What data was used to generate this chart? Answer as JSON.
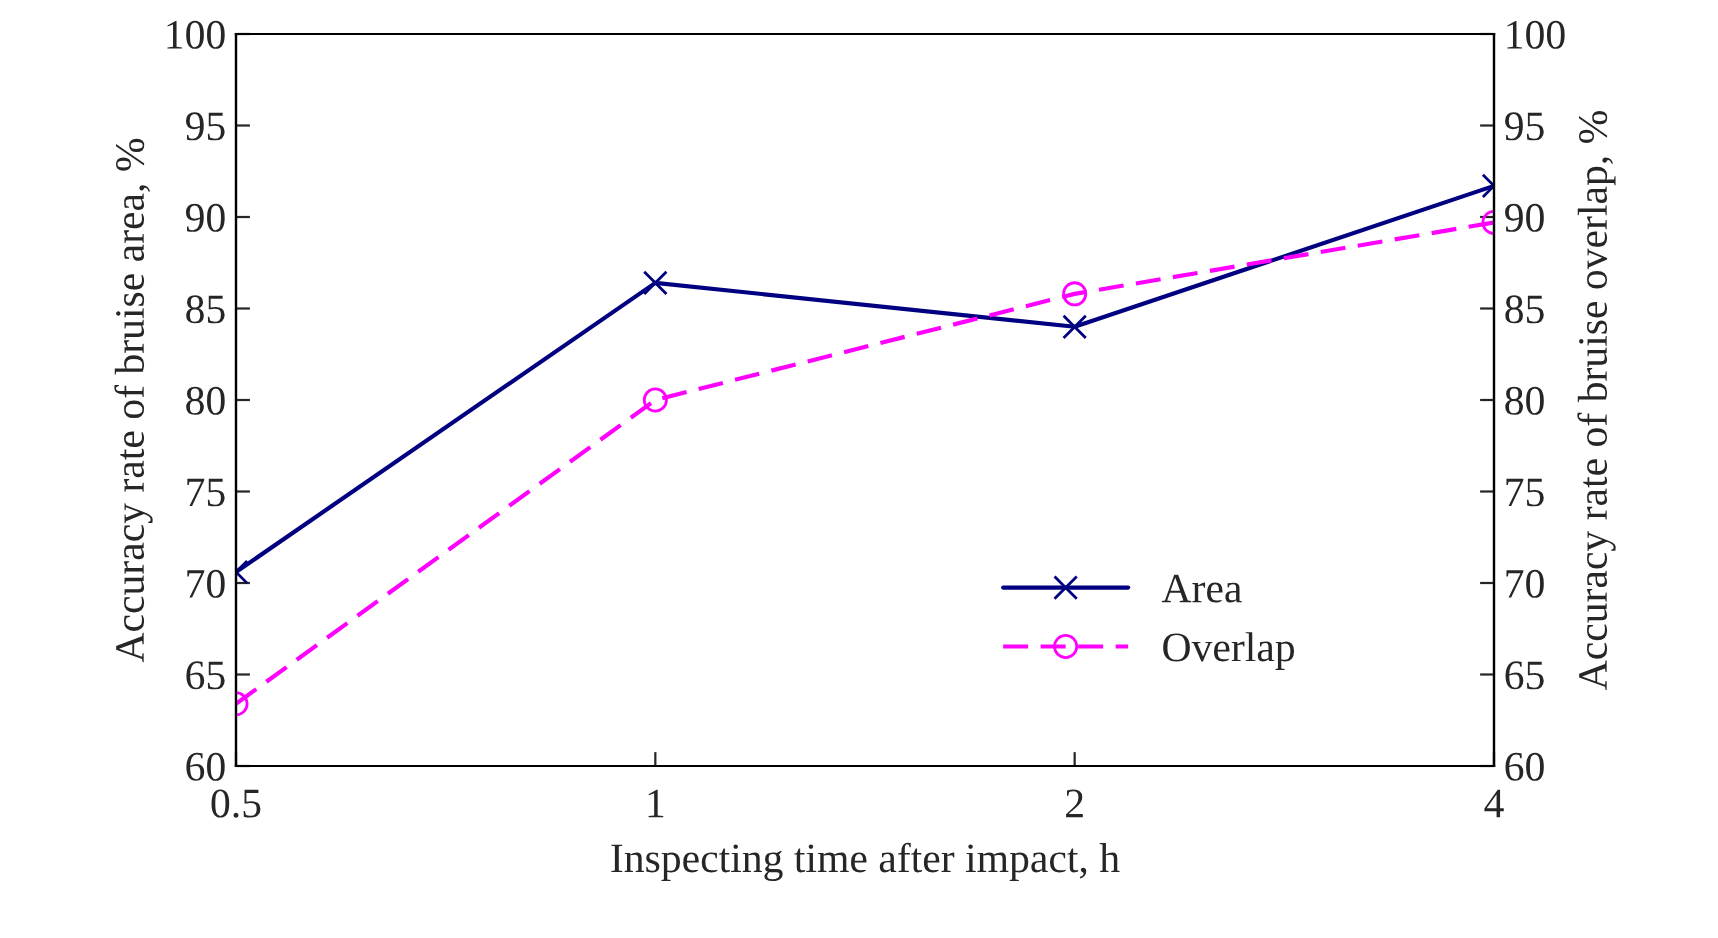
{
  "chart_data": {
    "type": "line",
    "xlabel": "Inspecting time after impact, h",
    "ylabel": "Accuracy rate of bruise area, %",
    "y2label": "Accuracy rate of bruise overlap, %",
    "categories": [
      "0.5",
      "1",
      "2",
      "4"
    ],
    "series": [
      {
        "name": "Area",
        "color": "#000080",
        "values": [
          70.6,
          86.4,
          84.0,
          91.7
        ],
        "marker": "cross",
        "line_style": "solid"
      },
      {
        "name": "Overlap",
        "color": "#ff00ff",
        "values": [
          63.4,
          80.0,
          85.8,
          89.7
        ],
        "marker": "circle",
        "line_style": "dashed",
        "axis": "y2"
      }
    ],
    "ylim": [
      60,
      100
    ],
    "yticks": [
      60,
      65,
      70,
      75,
      80,
      85,
      90,
      95,
      100
    ],
    "y2lim": [
      60,
      100
    ],
    "y2ticks": [
      60,
      65,
      70,
      75,
      80,
      85,
      90,
      95,
      100
    ],
    "grid": false,
    "legend": "bottom right"
  }
}
